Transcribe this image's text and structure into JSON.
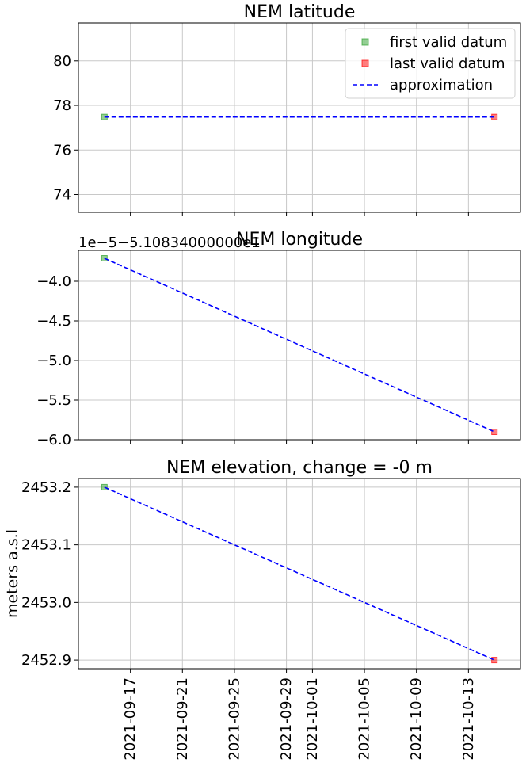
{
  "colors": {
    "first": "#2ca02c",
    "last": "#ff0000",
    "approx": "#0000ff"
  },
  "legend": {
    "placement": "top-right",
    "entries": [
      {
        "name": "first valid datum",
        "marker": "square",
        "color": "#2ca02c"
      },
      {
        "name": "last valid datum",
        "marker": "square",
        "color": "#ff0000"
      },
      {
        "name": "approximation",
        "marker": "dashed-line",
        "color": "#0000ff"
      }
    ]
  },
  "chart_data": [
    {
      "type": "line",
      "title": "NEM latitude",
      "ylabel": "",
      "offset_text": "",
      "x_ticks": [
        "2021-09-17",
        "2021-09-21",
        "2021-09-25",
        "2021-09-29",
        "2021-10-01",
        "2021-10-05",
        "2021-10-09",
        "2021-10-13"
      ],
      "xlim": [
        "2021-09-13",
        "2021-10-17"
      ],
      "ylim": [
        73.2,
        81.7
      ],
      "y_ticks": [
        74,
        76,
        78,
        80
      ],
      "y_tick_labels": [
        "74",
        "76",
        "78",
        "80"
      ],
      "grid": true,
      "show_x_tick_labels": false,
      "legend": true,
      "series": [
        {
          "name": "first valid datum",
          "x": [
            "2021-09-15"
          ],
          "values": [
            77.48
          ]
        },
        {
          "name": "last valid datum",
          "x": [
            "2021-10-15"
          ],
          "values": [
            77.48
          ]
        },
        {
          "name": "approximation",
          "x": [
            "2021-09-15",
            "2021-10-15"
          ],
          "values": [
            77.48,
            77.48
          ]
        }
      ]
    },
    {
      "type": "line",
      "title": "NEM longitude",
      "ylabel": "",
      "offset_text": "1e−5−5.10834000000e1",
      "x_ticks": [
        "2021-09-17",
        "2021-09-21",
        "2021-09-25",
        "2021-09-29",
        "2021-10-01",
        "2021-10-05",
        "2021-10-09",
        "2021-10-13"
      ],
      "xlim": [
        "2021-09-13",
        "2021-10-17"
      ],
      "ylim": [
        -6.0,
        -3.61
      ],
      "y_ticks": [
        -6.0,
        -5.5,
        -5.0,
        -4.5,
        -4.0
      ],
      "y_tick_labels": [
        "−6.0",
        "−5.5",
        "−5.0",
        "−4.5",
        "−4.0"
      ],
      "grid": true,
      "show_x_tick_labels": false,
      "legend": false,
      "series": [
        {
          "name": "first valid datum",
          "x": [
            "2021-09-15"
          ],
          "values": [
            -3.71
          ]
        },
        {
          "name": "last valid datum",
          "x": [
            "2021-10-15"
          ],
          "values": [
            -5.9
          ]
        },
        {
          "name": "approximation",
          "x": [
            "2021-09-15",
            "2021-10-15"
          ],
          "values": [
            -3.71,
            -5.9
          ]
        }
      ]
    },
    {
      "type": "line",
      "title": "NEM elevation, change = -0 m",
      "ylabel": "meters a.s.l",
      "offset_text": "",
      "x_ticks": [
        "2021-09-17",
        "2021-09-21",
        "2021-09-25",
        "2021-09-29",
        "2021-10-01",
        "2021-10-05",
        "2021-10-09",
        "2021-10-13"
      ],
      "xlim": [
        "2021-09-13",
        "2021-10-17"
      ],
      "ylim": [
        2452.885,
        2453.215
      ],
      "y_ticks": [
        2452.9,
        2453.0,
        2453.1,
        2453.2
      ],
      "y_tick_labels": [
        "2452.9",
        "2453.0",
        "2453.1",
        "2453.2"
      ],
      "grid": true,
      "show_x_tick_labels": true,
      "legend": false,
      "series": [
        {
          "name": "first valid datum",
          "x": [
            "2021-09-15"
          ],
          "values": [
            2453.2
          ]
        },
        {
          "name": "last valid datum",
          "x": [
            "2021-10-15"
          ],
          "values": [
            2452.9
          ]
        },
        {
          "name": "approximation",
          "x": [
            "2021-09-15",
            "2021-10-15"
          ],
          "values": [
            2453.2,
            2452.9
          ]
        }
      ]
    }
  ]
}
